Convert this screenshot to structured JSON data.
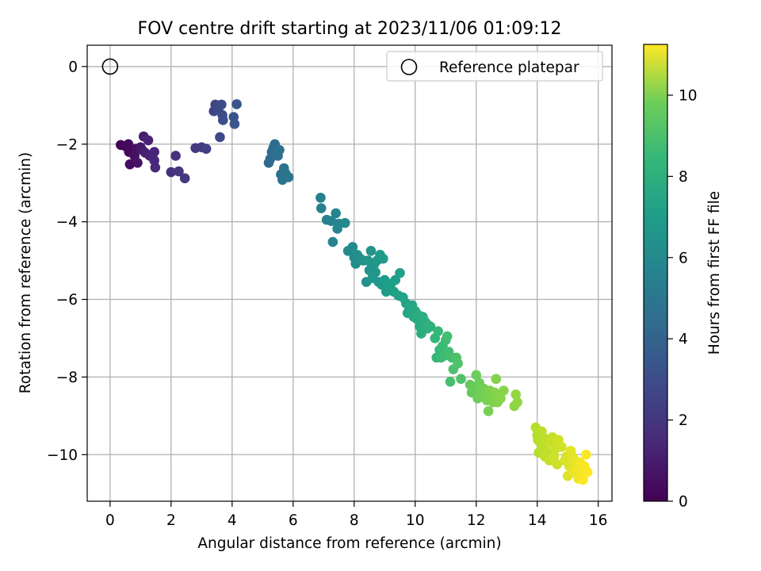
{
  "chart_data": {
    "type": "scatter",
    "title": "FOV centre drift starting at 2023/11/06 01:09:12",
    "xlabel": "Angular distance from reference (arcmin)",
    "ylabel": "Rotation from reference (arcmin)",
    "colorbar_label": "Hours from first FF file",
    "colormap": "viridis",
    "xlim": [
      -0.75,
      16.45
    ],
    "ylim": [
      -11.2,
      0.55
    ],
    "clim": [
      0,
      11.25
    ],
    "xticks": [
      0,
      2,
      4,
      6,
      8,
      10,
      12,
      14,
      16
    ],
    "xtick_labels": [
      "0",
      "2",
      "4",
      "6",
      "8",
      "10",
      "12",
      "14",
      "16"
    ],
    "yticks": [
      0,
      -2,
      -4,
      -6,
      -8,
      -10
    ],
    "ytick_labels": [
      "0",
      "−2",
      "−4",
      "−6",
      "−8",
      "−10"
    ],
    "cticks": [
      0,
      2,
      4,
      6,
      8,
      10
    ],
    "ctick_labels": [
      "0",
      "2",
      "4",
      "6",
      "8",
      "10"
    ],
    "grid": true,
    "legend": {
      "placement": "top-right",
      "entries": [
        "Reference platepar"
      ]
    },
    "reference_point": {
      "x": 0,
      "y": 0,
      "label": "Reference platepar"
    },
    "points": [
      {
        "x": 0.35,
        "y": -2.02,
        "t": 0.1
      },
      {
        "x": 0.5,
        "y": -2.05,
        "t": 0.2
      },
      {
        "x": 0.6,
        "y": -2.0,
        "t": 0.3
      },
      {
        "x": 0.62,
        "y": -2.2,
        "t": 0.3
      },
      {
        "x": 0.65,
        "y": -2.52,
        "t": 0.4
      },
      {
        "x": 0.8,
        "y": -2.3,
        "t": 0.5
      },
      {
        "x": 0.85,
        "y": -2.12,
        "t": 0.5
      },
      {
        "x": 0.9,
        "y": -2.48,
        "t": 0.6
      },
      {
        "x": 1.0,
        "y": -2.08,
        "t": 0.7
      },
      {
        "x": 1.05,
        "y": -2.15,
        "t": 0.8
      },
      {
        "x": 1.1,
        "y": -1.8,
        "t": 0.9
      },
      {
        "x": 1.15,
        "y": -2.22,
        "t": 1.0
      },
      {
        "x": 1.25,
        "y": -1.9,
        "t": 1.1
      },
      {
        "x": 1.3,
        "y": -2.3,
        "t": 1.1
      },
      {
        "x": 1.45,
        "y": -2.2,
        "t": 1.2
      },
      {
        "x": 1.45,
        "y": -2.42,
        "t": 1.2
      },
      {
        "x": 1.48,
        "y": -2.6,
        "t": 1.3
      },
      {
        "x": 2.0,
        "y": -2.72,
        "t": 1.5
      },
      {
        "x": 2.15,
        "y": -2.3,
        "t": 1.6
      },
      {
        "x": 2.25,
        "y": -2.7,
        "t": 1.7
      },
      {
        "x": 2.45,
        "y": -2.88,
        "t": 1.8
      },
      {
        "x": 2.8,
        "y": -2.1,
        "t": 1.9
      },
      {
        "x": 3.0,
        "y": -2.08,
        "t": 2.0
      },
      {
        "x": 3.15,
        "y": -2.12,
        "t": 2.1
      },
      {
        "x": 3.4,
        "y": -1.15,
        "t": 2.3
      },
      {
        "x": 3.45,
        "y": -0.98,
        "t": 2.4
      },
      {
        "x": 3.55,
        "y": -1.1,
        "t": 2.5
      },
      {
        "x": 3.6,
        "y": -1.82,
        "t": 2.5
      },
      {
        "x": 3.65,
        "y": -0.98,
        "t": 2.6
      },
      {
        "x": 3.68,
        "y": -1.25,
        "t": 2.6
      },
      {
        "x": 3.7,
        "y": -1.38,
        "t": 2.7
      },
      {
        "x": 4.05,
        "y": -1.3,
        "t": 2.9
      },
      {
        "x": 4.08,
        "y": -1.48,
        "t": 3.0
      },
      {
        "x": 4.15,
        "y": -0.97,
        "t": 3.0
      },
      {
        "x": 5.2,
        "y": -2.48,
        "t": 3.8
      },
      {
        "x": 5.25,
        "y": -2.38,
        "t": 3.9
      },
      {
        "x": 5.3,
        "y": -2.2,
        "t": 3.9
      },
      {
        "x": 5.35,
        "y": -2.1,
        "t": 4.0
      },
      {
        "x": 5.4,
        "y": -2.0,
        "t": 4.0
      },
      {
        "x": 5.45,
        "y": -2.25,
        "t": 4.1
      },
      {
        "x": 5.5,
        "y": -2.3,
        "t": 4.1
      },
      {
        "x": 5.55,
        "y": -2.15,
        "t": 4.2
      },
      {
        "x": 5.6,
        "y": -2.78,
        "t": 4.2
      },
      {
        "x": 5.65,
        "y": -2.92,
        "t": 4.3
      },
      {
        "x": 5.7,
        "y": -2.62,
        "t": 4.3
      },
      {
        "x": 5.75,
        "y": -2.75,
        "t": 4.4
      },
      {
        "x": 5.85,
        "y": -2.85,
        "t": 4.4
      },
      {
        "x": 6.9,
        "y": -3.38,
        "t": 4.9
      },
      {
        "x": 6.92,
        "y": -3.65,
        "t": 4.9
      },
      {
        "x": 7.1,
        "y": -3.95,
        "t": 5.0
      },
      {
        "x": 7.25,
        "y": -3.98,
        "t": 5.0
      },
      {
        "x": 7.3,
        "y": -4.52,
        "t": 5.1
      },
      {
        "x": 7.4,
        "y": -3.78,
        "t": 5.1
      },
      {
        "x": 7.45,
        "y": -4.18,
        "t": 5.2
      },
      {
        "x": 7.5,
        "y": -4.05,
        "t": 5.2
      },
      {
        "x": 7.7,
        "y": -4.03,
        "t": 5.3
      },
      {
        "x": 7.8,
        "y": -4.75,
        "t": 5.4
      },
      {
        "x": 7.95,
        "y": -4.65,
        "t": 5.4
      },
      {
        "x": 8.0,
        "y": -4.92,
        "t": 5.5
      },
      {
        "x": 8.05,
        "y": -5.08,
        "t": 5.5
      },
      {
        "x": 8.1,
        "y": -4.85,
        "t": 5.6
      },
      {
        "x": 8.2,
        "y": -4.95,
        "t": 5.6
      },
      {
        "x": 8.3,
        "y": -5.0,
        "t": 5.7
      },
      {
        "x": 8.4,
        "y": -5.55,
        "t": 5.7
      },
      {
        "x": 8.45,
        "y": -5.0,
        "t": 5.8
      },
      {
        "x": 8.5,
        "y": -5.25,
        "t": 5.8
      },
      {
        "x": 8.55,
        "y": -4.75,
        "t": 5.8
      },
      {
        "x": 8.6,
        "y": -5.45,
        "t": 5.9
      },
      {
        "x": 8.65,
        "y": -5.1,
        "t": 5.9
      },
      {
        "x": 8.7,
        "y": -5.3,
        "t": 6.0
      },
      {
        "x": 8.75,
        "y": -5.0,
        "t": 6.0
      },
      {
        "x": 8.8,
        "y": -5.55,
        "t": 6.0
      },
      {
        "x": 8.85,
        "y": -4.85,
        "t": 6.1
      },
      {
        "x": 8.9,
        "y": -5.62,
        "t": 6.1
      },
      {
        "x": 8.95,
        "y": -4.95,
        "t": 6.1
      },
      {
        "x": 9.0,
        "y": -5.5,
        "t": 6.2
      },
      {
        "x": 9.05,
        "y": -5.8,
        "t": 6.2
      },
      {
        "x": 9.15,
        "y": -5.72,
        "t": 6.2
      },
      {
        "x": 9.2,
        "y": -5.6,
        "t": 6.3
      },
      {
        "x": 9.3,
        "y": -5.8,
        "t": 6.3
      },
      {
        "x": 9.35,
        "y": -5.5,
        "t": 6.3
      },
      {
        "x": 9.45,
        "y": -5.9,
        "t": 6.4
      },
      {
        "x": 9.5,
        "y": -5.32,
        "t": 6.4
      },
      {
        "x": 9.6,
        "y": -5.95,
        "t": 6.5
      },
      {
        "x": 9.7,
        "y": -6.1,
        "t": 6.5
      },
      {
        "x": 9.75,
        "y": -6.35,
        "t": 6.6
      },
      {
        "x": 9.8,
        "y": -6.2,
        "t": 6.6
      },
      {
        "x": 9.9,
        "y": -6.15,
        "t": 6.7
      },
      {
        "x": 9.95,
        "y": -6.45,
        "t": 6.7
      },
      {
        "x": 10.0,
        "y": -6.3,
        "t": 6.8
      },
      {
        "x": 10.05,
        "y": -6.5,
        "t": 6.8
      },
      {
        "x": 10.1,
        "y": -6.4,
        "t": 6.9
      },
      {
        "x": 10.15,
        "y": -6.7,
        "t": 6.9
      },
      {
        "x": 10.2,
        "y": -6.88,
        "t": 7.0
      },
      {
        "x": 10.25,
        "y": -6.45,
        "t": 7.0
      },
      {
        "x": 10.3,
        "y": -6.55,
        "t": 7.1
      },
      {
        "x": 10.35,
        "y": -6.6,
        "t": 7.1
      },
      {
        "x": 10.4,
        "y": -6.75,
        "t": 7.1
      },
      {
        "x": 10.45,
        "y": -6.68,
        "t": 7.2
      },
      {
        "x": 10.5,
        "y": -6.7,
        "t": 7.2
      },
      {
        "x": 10.65,
        "y": -7.0,
        "t": 7.4
      },
      {
        "x": 10.7,
        "y": -7.5,
        "t": 7.4
      },
      {
        "x": 10.75,
        "y": -6.82,
        "t": 7.5
      },
      {
        "x": 10.8,
        "y": -7.3,
        "t": 7.5
      },
      {
        "x": 10.85,
        "y": -7.5,
        "t": 7.6
      },
      {
        "x": 10.9,
        "y": -7.2,
        "t": 7.6
      },
      {
        "x": 10.95,
        "y": -7.45,
        "t": 7.7
      },
      {
        "x": 11.0,
        "y": -7.05,
        "t": 7.7
      },
      {
        "x": 11.05,
        "y": -6.95,
        "t": 7.8
      },
      {
        "x": 11.1,
        "y": -7.35,
        "t": 7.8
      },
      {
        "x": 11.15,
        "y": -8.12,
        "t": 7.9
      },
      {
        "x": 11.2,
        "y": -7.5,
        "t": 7.9
      },
      {
        "x": 11.25,
        "y": -7.8,
        "t": 8.0
      },
      {
        "x": 11.35,
        "y": -7.5,
        "t": 8.0
      },
      {
        "x": 11.4,
        "y": -7.65,
        "t": 8.1
      },
      {
        "x": 11.5,
        "y": -8.05,
        "t": 8.1
      },
      {
        "x": 11.8,
        "y": -8.2,
        "t": 8.5
      },
      {
        "x": 11.85,
        "y": -8.4,
        "t": 8.5
      },
      {
        "x": 11.9,
        "y": -8.3,
        "t": 8.6
      },
      {
        "x": 11.95,
        "y": -8.25,
        "t": 8.6
      },
      {
        "x": 12.0,
        "y": -7.95,
        "t": 8.7
      },
      {
        "x": 12.05,
        "y": -8.55,
        "t": 8.7
      },
      {
        "x": 12.1,
        "y": -8.15,
        "t": 8.7
      },
      {
        "x": 12.15,
        "y": -8.4,
        "t": 8.8
      },
      {
        "x": 12.2,
        "y": -8.5,
        "t": 8.8
      },
      {
        "x": 12.25,
        "y": -8.3,
        "t": 8.8
      },
      {
        "x": 12.3,
        "y": -8.45,
        "t": 8.9
      },
      {
        "x": 12.35,
        "y": -8.6,
        "t": 8.9
      },
      {
        "x": 12.4,
        "y": -8.88,
        "t": 8.9
      },
      {
        "x": 12.45,
        "y": -8.35,
        "t": 9.0
      },
      {
        "x": 12.5,
        "y": -8.5,
        "t": 9.0
      },
      {
        "x": 12.55,
        "y": -8.65,
        "t": 9.0
      },
      {
        "x": 12.6,
        "y": -8.4,
        "t": 9.1
      },
      {
        "x": 12.65,
        "y": -8.05,
        "t": 9.1
      },
      {
        "x": 12.7,
        "y": -8.65,
        "t": 9.1
      },
      {
        "x": 12.8,
        "y": -8.55,
        "t": 9.2
      },
      {
        "x": 12.9,
        "y": -8.35,
        "t": 9.2
      },
      {
        "x": 13.25,
        "y": -8.75,
        "t": 9.3
      },
      {
        "x": 13.3,
        "y": -8.45,
        "t": 9.4
      },
      {
        "x": 13.35,
        "y": -8.65,
        "t": 9.4
      },
      {
        "x": 13.95,
        "y": -9.3,
        "t": 10.0
      },
      {
        "x": 14.0,
        "y": -9.5,
        "t": 10.0
      },
      {
        "x": 14.02,
        "y": -9.62,
        "t": 10.0
      },
      {
        "x": 14.05,
        "y": -9.95,
        "t": 10.0
      },
      {
        "x": 14.1,
        "y": -9.7,
        "t": 10.1
      },
      {
        "x": 14.15,
        "y": -9.4,
        "t": 10.1
      },
      {
        "x": 14.2,
        "y": -9.85,
        "t": 10.1
      },
      {
        "x": 14.25,
        "y": -10.05,
        "t": 10.2
      },
      {
        "x": 14.3,
        "y": -9.6,
        "t": 10.2
      },
      {
        "x": 14.35,
        "y": -9.95,
        "t": 10.2
      },
      {
        "x": 14.4,
        "y": -10.15,
        "t": 10.3
      },
      {
        "x": 14.45,
        "y": -9.7,
        "t": 10.3
      },
      {
        "x": 14.5,
        "y": -9.55,
        "t": 10.3
      },
      {
        "x": 14.55,
        "y": -10.05,
        "t": 10.4
      },
      {
        "x": 14.6,
        "y": -9.85,
        "t": 10.4
      },
      {
        "x": 14.65,
        "y": -10.25,
        "t": 10.4
      },
      {
        "x": 14.7,
        "y": -9.62,
        "t": 10.5
      },
      {
        "x": 14.8,
        "y": -9.8,
        "t": 10.5
      },
      {
        "x": 14.9,
        "y": -10.15,
        "t": 10.6
      },
      {
        "x": 14.95,
        "y": -10.05,
        "t": 10.6
      },
      {
        "x": 15.0,
        "y": -10.55,
        "t": 10.7
      },
      {
        "x": 15.05,
        "y": -10.3,
        "t": 10.7
      },
      {
        "x": 15.1,
        "y": -9.9,
        "t": 10.8
      },
      {
        "x": 15.15,
        "y": -10.05,
        "t": 10.8
      },
      {
        "x": 15.2,
        "y": -10.45,
        "t": 10.9
      },
      {
        "x": 15.25,
        "y": -10.15,
        "t": 10.9
      },
      {
        "x": 15.3,
        "y": -10.35,
        "t": 11.0
      },
      {
        "x": 15.35,
        "y": -10.62,
        "t": 11.0
      },
      {
        "x": 15.4,
        "y": -10.2,
        "t": 11.1
      },
      {
        "x": 15.45,
        "y": -10.5,
        "t": 11.1
      },
      {
        "x": 15.5,
        "y": -10.65,
        "t": 11.2
      },
      {
        "x": 15.55,
        "y": -10.3,
        "t": 11.2
      },
      {
        "x": 15.6,
        "y": -10.0,
        "t": 11.2
      },
      {
        "x": 15.65,
        "y": -10.45,
        "t": 11.25
      }
    ]
  }
}
